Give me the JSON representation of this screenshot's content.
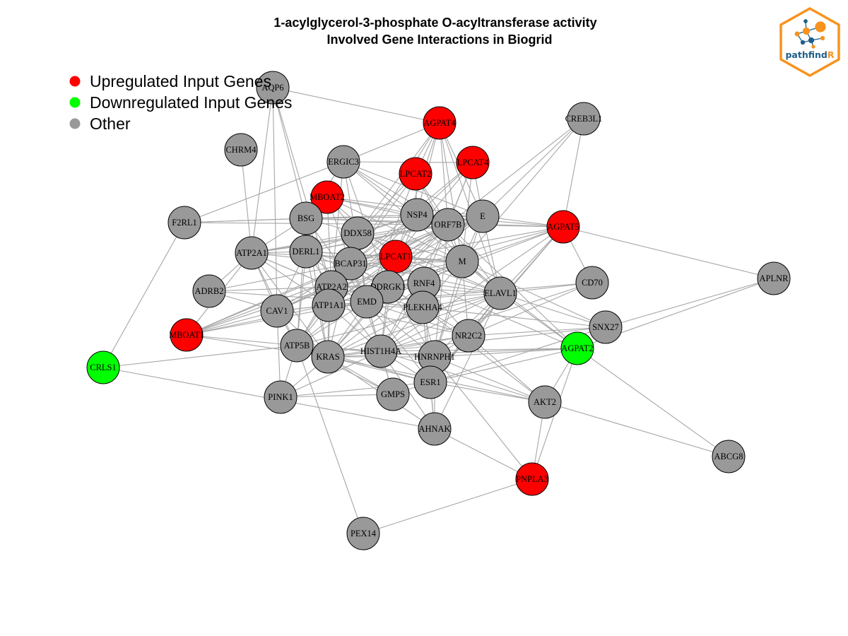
{
  "title_line1": "1-acylglycerol-3-phosphate O-acyltransferase activity",
  "title_line2": "Involved Gene Interactions in Biogrid",
  "legend": [
    {
      "label": "Upregulated Input Genes",
      "color": "#ff0000"
    },
    {
      "label": "Downregulated Input Genes",
      "color": "#00ff00"
    },
    {
      "label": "Other",
      "color": "#999999"
    }
  ],
  "logo": {
    "text_main": "pathfind",
    "text_accent": "R",
    "border_color": "#f7931e",
    "text_color": "#1d5f8a",
    "accent_color": "#f7931e"
  },
  "colors": {
    "up": "#ff0000",
    "down": "#00ff00",
    "other": "#999999",
    "edge": "#a6a6a6"
  },
  "nodes": [
    {
      "id": "AQP6",
      "type": "other"
    },
    {
      "id": "AGPAT4",
      "type": "up"
    },
    {
      "id": "CREB3L1",
      "type": "other"
    },
    {
      "id": "CHRM4",
      "type": "other"
    },
    {
      "id": "ERGIC3",
      "type": "other"
    },
    {
      "id": "LPCAT2",
      "type": "up"
    },
    {
      "id": "LPCAT4",
      "type": "up"
    },
    {
      "id": "MBOAT2",
      "type": "up"
    },
    {
      "id": "F2RL1",
      "type": "other"
    },
    {
      "id": "BSG",
      "type": "other"
    },
    {
      "id": "NSP4",
      "type": "other"
    },
    {
      "id": "ORF7B",
      "type": "other"
    },
    {
      "id": "E",
      "type": "other"
    },
    {
      "id": "AGPAT5",
      "type": "up"
    },
    {
      "id": "DDX58",
      "type": "other"
    },
    {
      "id": "ATP2A1",
      "type": "other"
    },
    {
      "id": "DERL1",
      "type": "other"
    },
    {
      "id": "LPCAT1",
      "type": "up"
    },
    {
      "id": "BCAP31",
      "type": "other"
    },
    {
      "id": "M",
      "type": "other"
    },
    {
      "id": "APLNR",
      "type": "other"
    },
    {
      "id": "ADRB2",
      "type": "other"
    },
    {
      "id": "ATP2A2",
      "type": "other"
    },
    {
      "id": "DDRGK1",
      "type": "other"
    },
    {
      "id": "RNF4",
      "type": "other"
    },
    {
      "id": "CD70",
      "type": "other"
    },
    {
      "id": "ELAVL1",
      "type": "other"
    },
    {
      "id": "CAV1",
      "type": "other"
    },
    {
      "id": "ATP1A1",
      "type": "other"
    },
    {
      "id": "EMD",
      "type": "other"
    },
    {
      "id": "PLEKHA4",
      "type": "other"
    },
    {
      "id": "MBOAT1",
      "type": "up"
    },
    {
      "id": "SNX27",
      "type": "other"
    },
    {
      "id": "NR2C2",
      "type": "other"
    },
    {
      "id": "ATP5B",
      "type": "other"
    },
    {
      "id": "AGPAT2",
      "type": "down"
    },
    {
      "id": "KRAS",
      "type": "other"
    },
    {
      "id": "HIST1H4A",
      "type": "other"
    },
    {
      "id": "HNRNPH1",
      "type": "other"
    },
    {
      "id": "CRLS1",
      "type": "down"
    },
    {
      "id": "ESR1",
      "type": "other"
    },
    {
      "id": "PINK1",
      "type": "other"
    },
    {
      "id": "GMPS",
      "type": "other"
    },
    {
      "id": "AKT2",
      "type": "other"
    },
    {
      "id": "AHNAK",
      "type": "other"
    },
    {
      "id": "ABCG8",
      "type": "other"
    },
    {
      "id": "PNPLA3",
      "type": "up"
    },
    {
      "id": "PEX14",
      "type": "other"
    }
  ],
  "edges": [
    [
      "AQP6",
      "AGPAT4"
    ],
    [
      "AQP6",
      "ATP2A1"
    ],
    [
      "AQP6",
      "CAV1"
    ],
    [
      "AQP6",
      "ATP2A2"
    ],
    [
      "AQP6",
      "BSG"
    ],
    [
      "AGPAT4",
      "ERGIC3"
    ],
    [
      "AGPAT4",
      "LPCAT2"
    ],
    [
      "AGPAT4",
      "NSP4"
    ],
    [
      "AGPAT4",
      "ORF7B"
    ],
    [
      "AGPAT4",
      "E"
    ],
    [
      "AGPAT4",
      "DDX58"
    ],
    [
      "AGPAT4",
      "BCAP31"
    ],
    [
      "AGPAT4",
      "LPCAT1"
    ],
    [
      "AGPAT4",
      "M"
    ],
    [
      "AGPAT4",
      "ELAVL1"
    ],
    [
      "CREB3L1",
      "AGPAT5"
    ],
    [
      "CREB3L1",
      "E"
    ],
    [
      "CREB3L1",
      "ORF7B"
    ],
    [
      "CREB3L1",
      "M"
    ],
    [
      "CHRM4",
      "ATP2A1"
    ],
    [
      "ERGIC3",
      "LPCAT4"
    ],
    [
      "ERGIC3",
      "NSP4"
    ],
    [
      "ERGIC3",
      "ORF7B"
    ],
    [
      "ERGIC3",
      "BSG"
    ],
    [
      "ERGIC3",
      "F2RL1"
    ],
    [
      "ERGIC3",
      "E"
    ],
    [
      "ERGIC3",
      "M"
    ],
    [
      "ERGIC3",
      "EMD"
    ],
    [
      "ERGIC3",
      "DDRGK1"
    ],
    [
      "ERGIC3",
      "ATP2A2"
    ],
    [
      "LPCAT2",
      "NSP4"
    ],
    [
      "LPCAT2",
      "ORF7B"
    ],
    [
      "LPCAT2",
      "BCAP31"
    ],
    [
      "LPCAT2",
      "DDX58"
    ],
    [
      "LPCAT2",
      "M"
    ],
    [
      "LPCAT2",
      "EMD"
    ],
    [
      "LPCAT4",
      "NSP4"
    ],
    [
      "LPCAT4",
      "ORF7B"
    ],
    [
      "LPCAT4",
      "E"
    ],
    [
      "LPCAT4",
      "M"
    ],
    [
      "LPCAT4",
      "LPCAT1"
    ],
    [
      "LPCAT4",
      "BCAP31"
    ],
    [
      "LPCAT4",
      "RNF4"
    ],
    [
      "MBOAT2",
      "NSP4"
    ],
    [
      "MBOAT2",
      "ORF7B"
    ],
    [
      "MBOAT2",
      "E"
    ],
    [
      "MBOAT2",
      "M"
    ],
    [
      "MBOAT2",
      "DDX58"
    ],
    [
      "MBOAT2",
      "BCAP31"
    ],
    [
      "MBOAT2",
      "LPCAT1"
    ],
    [
      "MBOAT2",
      "ATP2A2"
    ],
    [
      "F2RL1",
      "BSG"
    ],
    [
      "F2RL1",
      "CRLS1"
    ],
    [
      "F2RL1",
      "NSP4"
    ],
    [
      "F2RL1",
      "ORF7B"
    ],
    [
      "BSG",
      "DDX58"
    ],
    [
      "BSG",
      "NSP4"
    ],
    [
      "BSG",
      "ATP2A1"
    ],
    [
      "BSG",
      "ATP2A2"
    ],
    [
      "BSG",
      "EMD"
    ],
    [
      "BSG",
      "ATP1A1"
    ],
    [
      "BSG",
      "ORF7B"
    ],
    [
      "BSG",
      "ATP5B"
    ],
    [
      "BSG",
      "KRAS"
    ],
    [
      "BSG",
      "E"
    ],
    [
      "BSG",
      "AGPAT5"
    ],
    [
      "NSP4",
      "ORF7B"
    ],
    [
      "NSP4",
      "E"
    ],
    [
      "NSP4",
      "DDX58"
    ],
    [
      "NSP4",
      "EMD"
    ],
    [
      "NSP4",
      "ATP2A2"
    ],
    [
      "NSP4",
      "DERL1"
    ],
    [
      "NSP4",
      "BCAP31"
    ],
    [
      "NSP4",
      "DDRGK1"
    ],
    [
      "NSP4",
      "ATP1A1"
    ],
    [
      "NSP4",
      "ELAVL1"
    ],
    [
      "NSP4",
      "AGPAT5"
    ],
    [
      "ORF7B",
      "E"
    ],
    [
      "ORF7B",
      "AGPAT5"
    ],
    [
      "ORF7B",
      "M"
    ],
    [
      "ORF7B",
      "EMD"
    ],
    [
      "ORF7B",
      "ATP2A1"
    ],
    [
      "ORF7B",
      "ATP2A2"
    ],
    [
      "ORF7B",
      "DERL1"
    ],
    [
      "ORF7B",
      "ATP1A1"
    ],
    [
      "ORF7B",
      "CAV1"
    ],
    [
      "ORF7B",
      "MBOAT1"
    ],
    [
      "ORF7B",
      "ATP5B"
    ],
    [
      "ORF7B",
      "KRAS"
    ],
    [
      "ORF7B",
      "HIST1H4A"
    ],
    [
      "ORF7B",
      "ELAVL1"
    ],
    [
      "ORF7B",
      "AGPAT2"
    ],
    [
      "ORF7B",
      "HNRNPH1"
    ],
    [
      "E",
      "AGPAT5"
    ],
    [
      "E",
      "M"
    ],
    [
      "E",
      "ELAVL1"
    ],
    [
      "E",
      "BCAP31"
    ],
    [
      "E",
      "EMD"
    ],
    [
      "E",
      "ATP2A1"
    ],
    [
      "E",
      "ATP1A1"
    ],
    [
      "E",
      "DERL1"
    ],
    [
      "E",
      "CAV1"
    ],
    [
      "E",
      "HNRNPH1"
    ],
    [
      "AGPAT5",
      "M"
    ],
    [
      "AGPAT5",
      "APLNR"
    ],
    [
      "AGPAT5",
      "ELAVL1"
    ],
    [
      "AGPAT5",
      "CD70"
    ],
    [
      "AGPAT5",
      "EMD"
    ],
    [
      "AGPAT5",
      "ESR1"
    ],
    [
      "AGPAT5",
      "HIST1H4A"
    ],
    [
      "AGPAT5",
      "NR2C2"
    ],
    [
      "AGPAT5",
      "LPCAT1"
    ],
    [
      "AGPAT5",
      "ATP2A2"
    ],
    [
      "DDX58",
      "ATP2A1"
    ],
    [
      "DDX58",
      "ATP2A2"
    ],
    [
      "DDX58",
      "BCAP31"
    ],
    [
      "DDX58",
      "M"
    ],
    [
      "DDX58",
      "EMD"
    ],
    [
      "DDX58",
      "ATP1A1"
    ],
    [
      "DDX58",
      "ELAVL1"
    ],
    [
      "DDX58",
      "RNF4"
    ],
    [
      "ATP2A1",
      "DERL1"
    ],
    [
      "ATP2A1",
      "BCAP31"
    ],
    [
      "ATP2A1",
      "EMD"
    ],
    [
      "ATP2A1",
      "ATP2A2"
    ],
    [
      "ATP2A1",
      "ATP1A1"
    ],
    [
      "ATP2A1",
      "ADRB2"
    ],
    [
      "ATP2A1",
      "CAV1"
    ],
    [
      "ATP2A1",
      "ATP5B"
    ],
    [
      "ATP2A1",
      "KRAS"
    ],
    [
      "ATP2A1",
      "M"
    ],
    [
      "ATP2A1",
      "MBOAT1"
    ],
    [
      "DERL1",
      "BCAP31"
    ],
    [
      "DERL1",
      "EMD"
    ],
    [
      "DERL1",
      "ATP2A2"
    ],
    [
      "DERL1",
      "DDRGK1"
    ],
    [
      "DERL1",
      "LPCAT1"
    ],
    [
      "DERL1",
      "M"
    ],
    [
      "DERL1",
      "ATP5B"
    ],
    [
      "DERL1",
      "CAV1"
    ],
    [
      "DERL1",
      "ELAVL1"
    ],
    [
      "DERL1",
      "KRAS"
    ],
    [
      "LPCAT1",
      "BCAP31"
    ],
    [
      "LPCAT1",
      "M"
    ],
    [
      "LPCAT1",
      "EMD"
    ],
    [
      "LPCAT1",
      "ATP2A2"
    ],
    [
      "LPCAT1",
      "DDRGK1"
    ],
    [
      "LPCAT1",
      "RNF4"
    ],
    [
      "LPCAT1",
      "ATP1A1"
    ],
    [
      "LPCAT1",
      "HIST1H4A"
    ],
    [
      "LPCAT1",
      "MBOAT1"
    ],
    [
      "LPCAT1",
      "ELAVL1"
    ],
    [
      "BCAP31",
      "EMD"
    ],
    [
      "BCAP31",
      "ATP2A2"
    ],
    [
      "BCAP31",
      "DDRGK1"
    ],
    [
      "BCAP31",
      "M"
    ],
    [
      "BCAP31",
      "ATP1A1"
    ],
    [
      "BCAP31",
      "CAV1"
    ],
    [
      "BCAP31",
      "MBOAT1"
    ],
    [
      "BCAP31",
      "ATP5B"
    ],
    [
      "BCAP31",
      "KRAS"
    ],
    [
      "BCAP31",
      "HIST1H4A"
    ],
    [
      "BCAP31",
      "PLEKHA4"
    ],
    [
      "BCAP31",
      "ADRB2"
    ],
    [
      "M",
      "EMD"
    ],
    [
      "M",
      "ELAVL1"
    ],
    [
      "M",
      "NR2C2"
    ],
    [
      "M",
      "ATP2A2"
    ],
    [
      "M",
      "RNF4"
    ],
    [
      "M",
      "SNX27"
    ],
    [
      "M",
      "PLEKHA4"
    ],
    [
      "M",
      "HNRNPH1"
    ],
    [
      "M",
      "ATP1A1"
    ],
    [
      "M",
      "DDRGK1"
    ],
    [
      "M",
      "AGPAT2"
    ],
    [
      "APLNR",
      "SNX27"
    ],
    [
      "APLNR",
      "AGPAT2"
    ],
    [
      "ADRB2",
      "CAV1"
    ],
    [
      "ADRB2",
      "ATP2A2"
    ],
    [
      "ADRB2",
      "EMD"
    ],
    [
      "ATP2A2",
      "EMD"
    ],
    [
      "ATP2A2",
      "ATP1A1"
    ],
    [
      "ATP2A2",
      "CAV1"
    ],
    [
      "ATP2A2",
      "DDRGK1"
    ],
    [
      "ATP2A2",
      "MBOAT1"
    ],
    [
      "ATP2A2",
      "ATP5B"
    ],
    [
      "ATP2A2",
      "KRAS"
    ],
    [
      "ATP2A2",
      "HIST1H4A"
    ],
    [
      "ATP2A2",
      "PLEKHA4"
    ],
    [
      "ATP2A2",
      "RNF4"
    ],
    [
      "DDRGK1",
      "EMD"
    ],
    [
      "DDRGK1",
      "RNF4"
    ],
    [
      "DDRGK1",
      "ELAVL1"
    ],
    [
      "DDRGK1",
      "HIST1H4A"
    ],
    [
      "DDRGK1",
      "KRAS"
    ],
    [
      "DDRGK1",
      "PLEKHA4"
    ],
    [
      "DDRGK1",
      "ATP1A1"
    ],
    [
      "DDRGK1",
      "HNRNPH1"
    ],
    [
      "RNF4",
      "EMD"
    ],
    [
      "RNF4",
      "PLEKHA4"
    ],
    [
      "RNF4",
      "ELAVL1"
    ],
    [
      "RNF4",
      "HIST1H4A"
    ],
    [
      "RNF4",
      "ESR1"
    ],
    [
      "RNF4",
      "NR2C2"
    ],
    [
      "RNF4",
      "KRAS"
    ],
    [
      "RNF4",
      "AGPAT2"
    ],
    [
      "CD70",
      "ELAVL1"
    ],
    [
      "CD70",
      "HIST1H4A"
    ],
    [
      "CD70",
      "NR2C2"
    ],
    [
      "CD70",
      "EMD"
    ],
    [
      "ELAVL1",
      "EMD"
    ],
    [
      "ELAVL1",
      "NR2C2"
    ],
    [
      "ELAVL1",
      "PLEKHA4"
    ],
    [
      "ELAVL1",
      "HIST1H4A"
    ],
    [
      "ELAVL1",
      "KRAS"
    ],
    [
      "ELAVL1",
      "ESR1"
    ],
    [
      "ELAVL1",
      "HNRNPH1"
    ],
    [
      "ELAVL1",
      "ATP5B"
    ],
    [
      "ELAVL1",
      "AGPAT2"
    ],
    [
      "ELAVL1",
      "SNX27"
    ],
    [
      "ELAVL1",
      "AHNAK"
    ],
    [
      "CAV1",
      "ATP1A1"
    ],
    [
      "CAV1",
      "EMD"
    ],
    [
      "CAV1",
      "ATP5B"
    ],
    [
      "CAV1",
      "KRAS"
    ],
    [
      "CAV1",
      "MBOAT1"
    ],
    [
      "CAV1",
      "PINK1"
    ],
    [
      "ATP1A1",
      "EMD"
    ],
    [
      "ATP1A1",
      "ATP5B"
    ],
    [
      "ATP1A1",
      "KRAS"
    ],
    [
      "ATP1A1",
      "MBOAT1"
    ],
    [
      "ATP1A1",
      "HIST1H4A"
    ],
    [
      "ATP1A1",
      "PLEKHA4"
    ],
    [
      "ATP1A1",
      "NR2C2"
    ],
    [
      "EMD",
      "PLEKHA4"
    ],
    [
      "EMD",
      "HIST1H4A"
    ],
    [
      "EMD",
      "KRAS"
    ],
    [
      "EMD",
      "ATP5B"
    ],
    [
      "EMD",
      "MBOAT1"
    ],
    [
      "EMD",
      "HNRNPH1"
    ],
    [
      "EMD",
      "NR2C2"
    ],
    [
      "EMD",
      "ESR1"
    ],
    [
      "EMD",
      "GMPS"
    ],
    [
      "EMD",
      "SNX27"
    ],
    [
      "PLEKHA4",
      "HIST1H4A"
    ],
    [
      "PLEKHA4",
      "HNRNPH1"
    ],
    [
      "PLEKHA4",
      "ESR1"
    ],
    [
      "PLEKHA4",
      "NR2C2"
    ],
    [
      "PLEKHA4",
      "KRAS"
    ],
    [
      "PLEKHA4",
      "AHNAK"
    ],
    [
      "PLEKHA4",
      "AKT2"
    ],
    [
      "MBOAT1",
      "ATP5B"
    ],
    [
      "MBOAT1",
      "KRAS"
    ],
    [
      "SNX27",
      "NR2C2"
    ],
    [
      "SNX27",
      "ESR1"
    ],
    [
      "SNX27",
      "HIST1H4A"
    ],
    [
      "NR2C2",
      "HIST1H4A"
    ],
    [
      "NR2C2",
      "HNRNPH1"
    ],
    [
      "NR2C2",
      "ESR1"
    ],
    [
      "NR2C2",
      "KRAS"
    ],
    [
      "NR2C2",
      "AKT2"
    ],
    [
      "ATP5B",
      "KRAS"
    ],
    [
      "ATP5B",
      "HIST1H4A"
    ],
    [
      "ATP5B",
      "PINK1"
    ],
    [
      "ATP5B",
      "PEX14"
    ],
    [
      "ATP5B",
      "GMPS"
    ],
    [
      "ATP5B",
      "HNRNPH1"
    ],
    [
      "ATP5B",
      "ESR1"
    ],
    [
      "AGPAT2",
      "ESR1"
    ],
    [
      "AGPAT2",
      "HNRNPH1"
    ],
    [
      "AGPAT2",
      "AKT2"
    ],
    [
      "AGPAT2",
      "ABCG8"
    ],
    [
      "AGPAT2",
      "PNPLA3"
    ],
    [
      "AGPAT2",
      "KRAS"
    ],
    [
      "AGPAT2",
      "HIST1H4A"
    ],
    [
      "KRAS",
      "HIST1H4A"
    ],
    [
      "KRAS",
      "HNRNPH1"
    ],
    [
      "KRAS",
      "ESR1"
    ],
    [
      "KRAS",
      "PINK1"
    ],
    [
      "KRAS",
      "GMPS"
    ],
    [
      "KRAS",
      "AHNAK"
    ],
    [
      "KRAS",
      "AKT2"
    ],
    [
      "HIST1H4A",
      "HNRNPH1"
    ],
    [
      "HIST1H4A",
      "ESR1"
    ],
    [
      "HIST1H4A",
      "GMPS"
    ],
    [
      "HIST1H4A",
      "AHNAK"
    ],
    [
      "HIST1H4A",
      "AKT2"
    ],
    [
      "HIST1H4A",
      "PINK1"
    ],
    [
      "HNRNPH1",
      "ESR1"
    ],
    [
      "HNRNPH1",
      "AHNAK"
    ],
    [
      "HNRNPH1",
      "AKT2"
    ],
    [
      "HNRNPH1",
      "PNPLA3"
    ],
    [
      "CRLS1",
      "ATP5B"
    ],
    [
      "CRLS1",
      "AHNAK"
    ],
    [
      "ESR1",
      "AKT2"
    ],
    [
      "ESR1",
      "AHNAK"
    ],
    [
      "ESR1",
      "GMPS"
    ],
    [
      "ESR1",
      "PINK1"
    ],
    [
      "PINK1",
      "GMPS"
    ],
    [
      "AKT2",
      "ABCG8"
    ],
    [
      "AKT2",
      "PNPLA3"
    ],
    [
      "AHNAK",
      "PNPLA3"
    ],
    [
      "PNPLA3",
      "PEX14"
    ]
  ]
}
